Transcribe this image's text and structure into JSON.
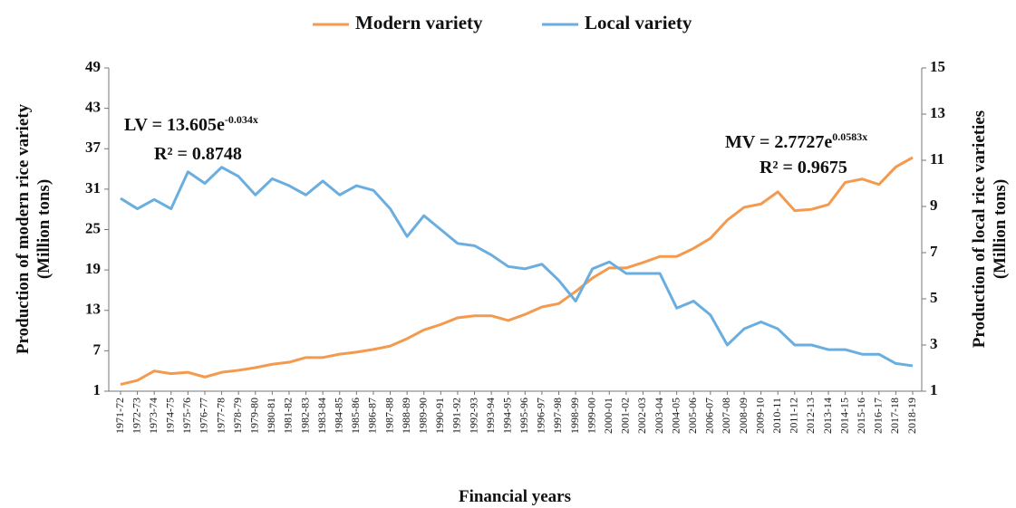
{
  "chart_data": {
    "type": "line",
    "categories": [
      "1971-72",
      "1972-73",
      "1973-74",
      "1974-75",
      "1975-76",
      "1976-77",
      "1977-78",
      "1978-79",
      "1979-80",
      "1980-81",
      "1981-82",
      "1982-83",
      "1983-84",
      "1984-85",
      "1985-86",
      "1986-87",
      "1987-88",
      "1988-89",
      "1989-90",
      "1990-91",
      "1991-92",
      "1992-93",
      "1993-94",
      "1994-95",
      "1995-96",
      "1996-97",
      "1997-98",
      "1998-99",
      "1999-00",
      "2000-01",
      "2001-02",
      "2002-03",
      "2003-04",
      "2004-05",
      "2005-06",
      "2006-07",
      "2007-08",
      "2008-09",
      "2009-10",
      "2010-11",
      "2011-12",
      "2012-13",
      "2013-14",
      "2014-15",
      "2015-16",
      "2016-17",
      "2017-18",
      "2018-19"
    ],
    "series": [
      {
        "name": "Modern variety",
        "color": "#f39a4f",
        "axis": "y",
        "values": [
          2.0,
          2.6,
          4.0,
          3.6,
          3.8,
          3.1,
          3.8,
          4.1,
          4.5,
          5.0,
          5.3,
          6.0,
          6.0,
          6.5,
          6.8,
          7.2,
          7.7,
          8.8,
          10.1,
          10.9,
          11.9,
          12.2,
          12.2,
          11.5,
          12.4,
          13.5,
          14.0,
          15.8,
          17.8,
          19.3,
          19.3,
          20.1,
          21.0,
          21.0,
          22.2,
          23.7,
          26.4,
          28.3,
          28.8,
          30.6,
          27.8,
          28.0,
          28.7,
          32.0,
          32.5,
          31.7,
          34.3,
          35.7
        ]
      },
      {
        "name": "Local variety",
        "color": "#6aaee0",
        "axis": "y2",
        "values": [
          9.35,
          8.9,
          9.3,
          8.9,
          10.5,
          10.0,
          10.7,
          10.3,
          9.5,
          10.2,
          9.9,
          9.5,
          10.1,
          9.5,
          9.9,
          9.7,
          8.9,
          7.7,
          8.6,
          8.0,
          7.4,
          7.3,
          6.9,
          6.4,
          6.3,
          6.5,
          5.8,
          4.9,
          6.3,
          6.6,
          6.1,
          6.1,
          6.1,
          4.6,
          4.9,
          4.3,
          3.0,
          3.7,
          4.0,
          3.7,
          3.0,
          3.0,
          2.8,
          2.8,
          2.6,
          2.6,
          2.2,
          2.1
        ]
      }
    ],
    "ylim": [
      1,
      49
    ],
    "yticks": [
      1,
      7,
      13,
      19,
      25,
      31,
      37,
      43,
      49
    ],
    "y2lim": [
      1,
      15
    ],
    "y2ticks": [
      1,
      3,
      5,
      7,
      9,
      11,
      13,
      15
    ],
    "x_label": "Financial years",
    "y_label": [
      "Production of modern rice variety",
      "(Million tons)"
    ],
    "y2_label": [
      "Production of local rice varieties",
      "(Million tons)"
    ],
    "annotations": [
      {
        "equation": "LV = 13.605e",
        "exponent": "-0.034x",
        "r2": "R² = 0.8748"
      },
      {
        "equation": "MV = 2.7727e",
        "exponent": "0.0583x",
        "r2": "R² = 0.9675"
      }
    ],
    "grid": false,
    "legend": "top"
  }
}
